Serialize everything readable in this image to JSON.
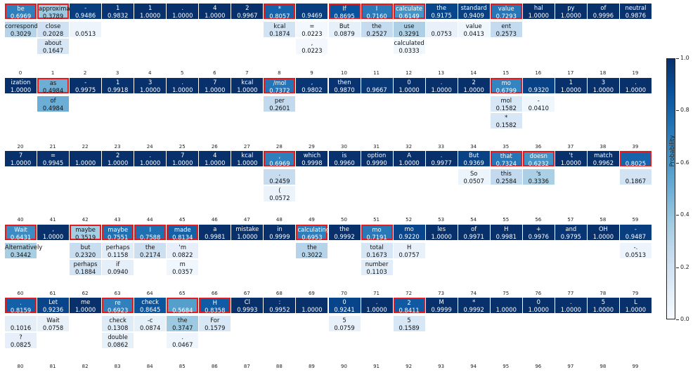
{
  "chart_data": {
    "type": "heatmap",
    "colorbar": {
      "label": "Probability",
      "range": [
        0.0,
        1.0
      ],
      "ticks": [
        "0.0",
        "0.2",
        "0.4",
        "0.6",
        "0.8",
        "1.0"
      ],
      "colormap": "Blues"
    },
    "columns_per_row": 20,
    "positions": [
      {
        "i": 0,
        "sel": true,
        "c": [
          [
            "be",
            "0.6969"
          ],
          [
            "correspond",
            "0.3029"
          ]
        ]
      },
      {
        "i": 1,
        "sel": true,
        "c": [
          [
            "approximately",
            "0.3789"
          ],
          [
            "close",
            "0.2028"
          ],
          [
            "about",
            "0.1647"
          ]
        ]
      },
      {
        "i": 2,
        "sel": false,
        "c": [
          [
            "-",
            "0.9486"
          ],
          [
            "",
            "0.0513"
          ]
        ]
      },
      {
        "i": 3,
        "sel": false,
        "c": [
          [
            "1",
            "0.9832"
          ]
        ]
      },
      {
        "i": 4,
        "sel": false,
        "c": [
          [
            "1",
            "1.0000"
          ]
        ]
      },
      {
        "i": 5,
        "sel": false,
        "c": [
          [
            ".",
            "1.0000"
          ]
        ]
      },
      {
        "i": 6,
        "sel": false,
        "c": [
          [
            "4",
            "1.0000"
          ]
        ]
      },
      {
        "i": 7,
        "sel": false,
        "c": [
          [
            "2",
            "0.9967"
          ]
        ]
      },
      {
        "i": 8,
        "sel": true,
        "c": [
          [
            "*",
            "0.8057"
          ],
          [
            "kcal",
            "0.1874"
          ]
        ]
      },
      {
        "i": 9,
        "sel": false,
        "c": [
          [
            "",
            "0.9469"
          ],
          [
            "=",
            "0.0223"
          ],
          [
            ",",
            "0.0223"
          ]
        ]
      },
      {
        "i": 10,
        "sel": true,
        "c": [
          [
            "If",
            "0.8695"
          ],
          [
            "But",
            "0.0879"
          ]
        ]
      },
      {
        "i": 11,
        "sel": true,
        "c": [
          [
            "I",
            "0.7160"
          ],
          [
            "the",
            "0.2527"
          ]
        ]
      },
      {
        "i": 12,
        "sel": true,
        "c": [
          [
            "calculate",
            "0.6149"
          ],
          [
            "use",
            "0.3291"
          ],
          [
            "calculated",
            "0.0333"
          ]
        ]
      },
      {
        "i": 13,
        "sel": false,
        "c": [
          [
            "the",
            "0.9175"
          ],
          [
            "",
            "0.0753"
          ]
        ]
      },
      {
        "i": 14,
        "sel": false,
        "c": [
          [
            "standard",
            "0.9409"
          ],
          [
            "value",
            "0.0413"
          ]
        ]
      },
      {
        "i": 15,
        "sel": true,
        "c": [
          [
            "value",
            "0.7293"
          ],
          [
            "ent",
            "0.2573"
          ]
        ]
      },
      {
        "i": 16,
        "sel": false,
        "c": [
          [
            "hal",
            "1.0000"
          ]
        ]
      },
      {
        "i": 17,
        "sel": false,
        "c": [
          [
            "py",
            "1.0000"
          ]
        ]
      },
      {
        "i": 18,
        "sel": false,
        "c": [
          [
            "of",
            "0.9996"
          ]
        ]
      },
      {
        "i": 19,
        "sel": false,
        "c": [
          [
            "neutral",
            "0.9876"
          ]
        ]
      },
      {
        "i": 20,
        "sel": false,
        "c": [
          [
            "ization",
            "1.0000"
          ]
        ]
      },
      {
        "i": 21,
        "sel": true,
        "c": [
          [
            "as",
            "0.4984"
          ],
          [
            "of",
            "0.4984"
          ]
        ]
      },
      {
        "i": 22,
        "sel": false,
        "c": [
          [
            "-",
            "0.9975"
          ]
        ]
      },
      {
        "i": 23,
        "sel": false,
        "c": [
          [
            "1",
            "0.9918"
          ]
        ]
      },
      {
        "i": 24,
        "sel": false,
        "c": [
          [
            "3",
            "1.0000"
          ]
        ]
      },
      {
        "i": 25,
        "sel": false,
        "c": [
          [
            ".",
            "1.0000"
          ]
        ]
      },
      {
        "i": 26,
        "sel": false,
        "c": [
          [
            "7",
            "1.0000"
          ]
        ]
      },
      {
        "i": 27,
        "sel": false,
        "c": [
          [
            "kcal",
            "1.0000"
          ]
        ]
      },
      {
        "i": 28,
        "sel": true,
        "c": [
          [
            "/mol",
            "0.7372"
          ],
          [
            "per",
            "0.2601"
          ]
        ]
      },
      {
        "i": 29,
        "sel": false,
        "c": [
          [
            ",",
            "0.9802"
          ]
        ]
      },
      {
        "i": 30,
        "sel": false,
        "c": [
          [
            "then",
            "0.9870"
          ]
        ]
      },
      {
        "i": 31,
        "sel": false,
        "c": [
          [
            "",
            "0.9667"
          ]
        ]
      },
      {
        "i": 32,
        "sel": false,
        "c": [
          [
            "0",
            "1.0000"
          ]
        ]
      },
      {
        "i": 33,
        "sel": false,
        "c": [
          [
            ".",
            "1.0000"
          ]
        ]
      },
      {
        "i": 34,
        "sel": false,
        "c": [
          [
            "2",
            "1.0000"
          ]
        ]
      },
      {
        "i": 35,
        "sel": true,
        "c": [
          [
            "mo",
            "0.6799"
          ],
          [
            "mol",
            "0.1582"
          ],
          [
            "*",
            "0.1582"
          ]
        ]
      },
      {
        "i": 36,
        "sel": false,
        "c": [
          [
            "",
            "0.9320"
          ],
          [
            "-",
            "0.0410"
          ]
        ]
      },
      {
        "i": 37,
        "sel": false,
        "c": [
          [
            "1",
            "1.0000"
          ]
        ]
      },
      {
        "i": 38,
        "sel": false,
        "c": [
          [
            "3",
            "1.0000"
          ]
        ]
      },
      {
        "i": 39,
        "sel": false,
        "c": [
          [
            ".",
            "1.0000"
          ]
        ]
      },
      {
        "i": 40,
        "sel": false,
        "c": [
          [
            "7",
            "1.0000"
          ]
        ]
      },
      {
        "i": 41,
        "sel": false,
        "c": [
          [
            "=",
            "0.9945"
          ]
        ]
      },
      {
        "i": 42,
        "sel": false,
        "c": [
          [
            "",
            "1.0000"
          ]
        ]
      },
      {
        "i": 43,
        "sel": false,
        "c": [
          [
            "2",
            "1.0000"
          ]
        ]
      },
      {
        "i": 44,
        "sel": false,
        "c": [
          [
            ".",
            "1.0000"
          ]
        ]
      },
      {
        "i": 45,
        "sel": false,
        "c": [
          [
            "7",
            "1.0000"
          ]
        ]
      },
      {
        "i": 46,
        "sel": false,
        "c": [
          [
            "4",
            "1.0000"
          ]
        ]
      },
      {
        "i": 47,
        "sel": false,
        "c": [
          [
            "kcal",
            "1.0000"
          ]
        ]
      },
      {
        "i": 48,
        "sel": true,
        "c": [
          [
            ",",
            "0.6969"
          ],
          [
            ".",
            "0.2459"
          ],
          [
            "(",
            "0.0572"
          ]
        ]
      },
      {
        "i": 49,
        "sel": false,
        "c": [
          [
            "which",
            "0.9998"
          ]
        ]
      },
      {
        "i": 50,
        "sel": false,
        "c": [
          [
            "is",
            "0.9960"
          ]
        ]
      },
      {
        "i": 51,
        "sel": false,
        "c": [
          [
            "option",
            "0.9990"
          ]
        ]
      },
      {
        "i": 52,
        "sel": false,
        "c": [
          [
            "A",
            "1.0000"
          ]
        ]
      },
      {
        "i": 53,
        "sel": false,
        "c": [
          [
            ".",
            "0.9977"
          ]
        ]
      },
      {
        "i": 54,
        "sel": false,
        "c": [
          [
            "But",
            "0.9369"
          ],
          [
            "So",
            "0.0507"
          ]
        ]
      },
      {
        "i": 55,
        "sel": true,
        "c": [
          [
            "that",
            "0.7324"
          ],
          [
            "this",
            "0.2584"
          ]
        ]
      },
      {
        "i": 56,
        "sel": true,
        "c": [
          [
            "doesn",
            "0.6232"
          ],
          [
            "'s",
            "0.3336"
          ]
        ]
      },
      {
        "i": 57,
        "sel": false,
        "c": [
          [
            "'t",
            "1.0000"
          ]
        ]
      },
      {
        "i": 58,
        "sel": false,
        "c": [
          [
            "match",
            "0.9962"
          ]
        ]
      },
      {
        "i": 59,
        "sel": true,
        "c": [
          [
            "",
            "0.8025"
          ],
          [
            "",
            "0.1867"
          ]
        ]
      },
      {
        "i": 60,
        "sel": true,
        "c": [
          [
            "Wait",
            "0.6431"
          ],
          [
            "Alternatively",
            "0.3442"
          ]
        ]
      },
      {
        "i": 61,
        "sel": false,
        "c": [
          [
            ",",
            "1.0000"
          ]
        ]
      },
      {
        "i": 62,
        "sel": true,
        "c": [
          [
            "maybe",
            "0.3519"
          ],
          [
            "but",
            "0.2320"
          ],
          [
            "perhaps",
            "0.1884"
          ]
        ]
      },
      {
        "i": 63,
        "sel": true,
        "c": [
          [
            "maybe",
            "0.7551"
          ],
          [
            "perhaps",
            "0.1158"
          ],
          [
            "if",
            "0.0940"
          ]
        ]
      },
      {
        "i": 64,
        "sel": true,
        "c": [
          [
            "I",
            "0.7588"
          ],
          [
            "the",
            "0.2174"
          ]
        ]
      },
      {
        "i": 65,
        "sel": true,
        "c": [
          [
            "made",
            "0.8134"
          ],
          [
            "'m",
            "0.0822"
          ],
          [
            "m",
            "0.0357"
          ]
        ]
      },
      {
        "i": 66,
        "sel": false,
        "c": [
          [
            "a",
            "0.9981"
          ]
        ]
      },
      {
        "i": 67,
        "sel": false,
        "c": [
          [
            "mistake",
            "1.0000"
          ]
        ]
      },
      {
        "i": 68,
        "sel": false,
        "c": [
          [
            "in",
            "0.9999"
          ]
        ]
      },
      {
        "i": 69,
        "sel": true,
        "c": [
          [
            "calculating",
            "0.6953"
          ],
          [
            "the",
            "0.3022"
          ]
        ]
      },
      {
        "i": 70,
        "sel": false,
        "c": [
          [
            "the",
            "0.9992"
          ]
        ]
      },
      {
        "i": 71,
        "sel": true,
        "c": [
          [
            "mo",
            "0.7191"
          ],
          [
            "total",
            "0.1673"
          ],
          [
            "number",
            "0.1103"
          ]
        ]
      },
      {
        "i": 72,
        "sel": false,
        "c": [
          [
            "mo",
            "0.9220"
          ],
          [
            "H",
            "0.0757"
          ]
        ]
      },
      {
        "i": 73,
        "sel": false,
        "c": [
          [
            "les",
            "1.0000"
          ]
        ]
      },
      {
        "i": 74,
        "sel": false,
        "c": [
          [
            "of",
            "0.9971"
          ]
        ]
      },
      {
        "i": 75,
        "sel": false,
        "c": [
          [
            "H",
            "0.9981"
          ]
        ]
      },
      {
        "i": 76,
        "sel": false,
        "c": [
          [
            "+",
            "0.9976"
          ]
        ]
      },
      {
        "i": 77,
        "sel": false,
        "c": [
          [
            "and",
            "0.9795"
          ]
        ]
      },
      {
        "i": 78,
        "sel": false,
        "c": [
          [
            "OH",
            "1.0000"
          ]
        ]
      },
      {
        "i": 79,
        "sel": false,
        "c": [
          [
            "-",
            "0.9487"
          ],
          [
            "-.",
            "0.0513"
          ]
        ]
      },
      {
        "i": 80,
        "sel": true,
        "c": [
          [
            ".",
            "0.8159"
          ],
          [
            "",
            "0.1016"
          ],
          [
            "?",
            "0.0825"
          ]
        ]
      },
      {
        "i": 81,
        "sel": false,
        "c": [
          [
            "Let",
            "0.9236"
          ],
          [
            "Wait",
            "0.0758"
          ]
        ]
      },
      {
        "i": 82,
        "sel": false,
        "c": [
          [
            "me",
            "1.0000"
          ]
        ]
      },
      {
        "i": 83,
        "sel": true,
        "c": [
          [
            "re",
            "0.6923"
          ],
          [
            "check",
            "0.1308"
          ],
          [
            "double",
            "0.0862"
          ]
        ]
      },
      {
        "i": 84,
        "sel": false,
        "c": [
          [
            "check",
            "0.8645"
          ],
          [
            "-c",
            "0.0874"
          ]
        ]
      },
      {
        "i": 85,
        "sel": true,
        "c": [
          [
            "",
            "0.5684"
          ],
          [
            "the",
            "0.3747"
          ],
          [
            ".",
            "0.0467"
          ]
        ]
      },
      {
        "i": 86,
        "sel": true,
        "c": [
          [
            "H",
            "0.8358"
          ],
          [
            "For",
            "0.1579"
          ]
        ]
      },
      {
        "i": 87,
        "sel": false,
        "c": [
          [
            "Cl",
            "0.9993"
          ]
        ]
      },
      {
        "i": 88,
        "sel": false,
        "c": [
          [
            ":",
            "0.9952"
          ]
        ]
      },
      {
        "i": 89,
        "sel": false,
        "c": [
          [
            "",
            "1.0000"
          ]
        ]
      },
      {
        "i": 90,
        "sel": false,
        "c": [
          [
            "0",
            "0.9241"
          ],
          [
            "5",
            "0.0759"
          ]
        ]
      },
      {
        "i": 91,
        "sel": false,
        "c": [
          [
            ".",
            "1.0000"
          ]
        ]
      },
      {
        "i": 92,
        "sel": true,
        "c": [
          [
            "2",
            "0.8411"
          ],
          [
            "5",
            "0.1589"
          ]
        ]
      },
      {
        "i": 93,
        "sel": false,
        "c": [
          [
            "M",
            "0.9999"
          ]
        ]
      },
      {
        "i": 94,
        "sel": false,
        "c": [
          [
            "*",
            "0.9992"
          ]
        ]
      },
      {
        "i": 95,
        "sel": false,
        "c": [
          [
            "",
            "1.0000"
          ]
        ]
      },
      {
        "i": 96,
        "sel": false,
        "c": [
          [
            "0",
            "1.0000"
          ]
        ]
      },
      {
        "i": 97,
        "sel": false,
        "c": [
          [
            ".",
            "1.0000"
          ]
        ]
      },
      {
        "i": 98,
        "sel": false,
        "c": [
          [
            "5",
            "1.0000"
          ]
        ]
      },
      {
        "i": 99,
        "sel": false,
        "c": [
          [
            "L",
            "1.0000"
          ]
        ]
      }
    ]
  }
}
